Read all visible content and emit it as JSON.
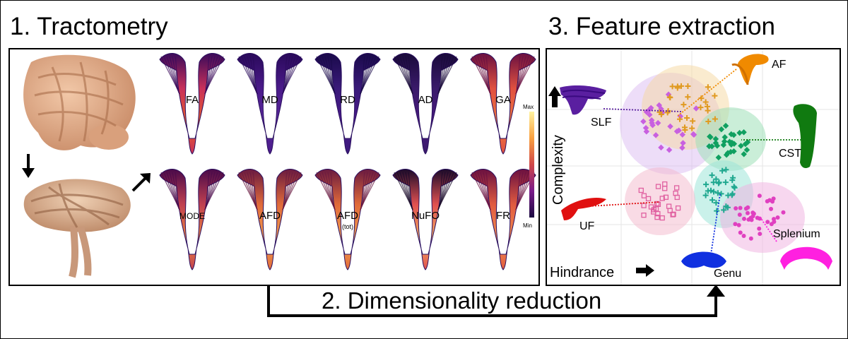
{
  "titles": {
    "tractometry": "1. Tractometry",
    "feature_extraction": "3. Feature extraction",
    "dimensionality_reduction": "2. Dimensionality reduction"
  },
  "metrics_top": [
    "FA",
    "MD",
    "RD",
    "AD",
    "GA"
  ],
  "metrics_bottom": [
    "MODE",
    "AFD",
    "AFD",
    "NuFO",
    "FR"
  ],
  "afd_tot_sub": "(tot)",
  "colorbar": {
    "max": "Max",
    "min": "Min"
  },
  "axes": {
    "x_label": "Hindrance",
    "y_label": "Complexity"
  },
  "tracts": {
    "af": "AF",
    "slf": "SLF",
    "cst": "CST",
    "uf": "UF",
    "splenium": "Splenium",
    "genu": "Genu"
  },
  "colors": {
    "af": "#f08a00",
    "slf": "#5a1fa0",
    "cst": "#107a10",
    "uf": "#e01010",
    "splenium": "#ff20e0",
    "genu": "#1030e0",
    "cluster_orange": "#e09a20",
    "cluster_violet": "#c860e0",
    "cluster_green": "#10a060",
    "cluster_teal": "#20a890",
    "cluster_pink": "#e060a0",
    "cluster_magenta": "#e040c0"
  }
}
